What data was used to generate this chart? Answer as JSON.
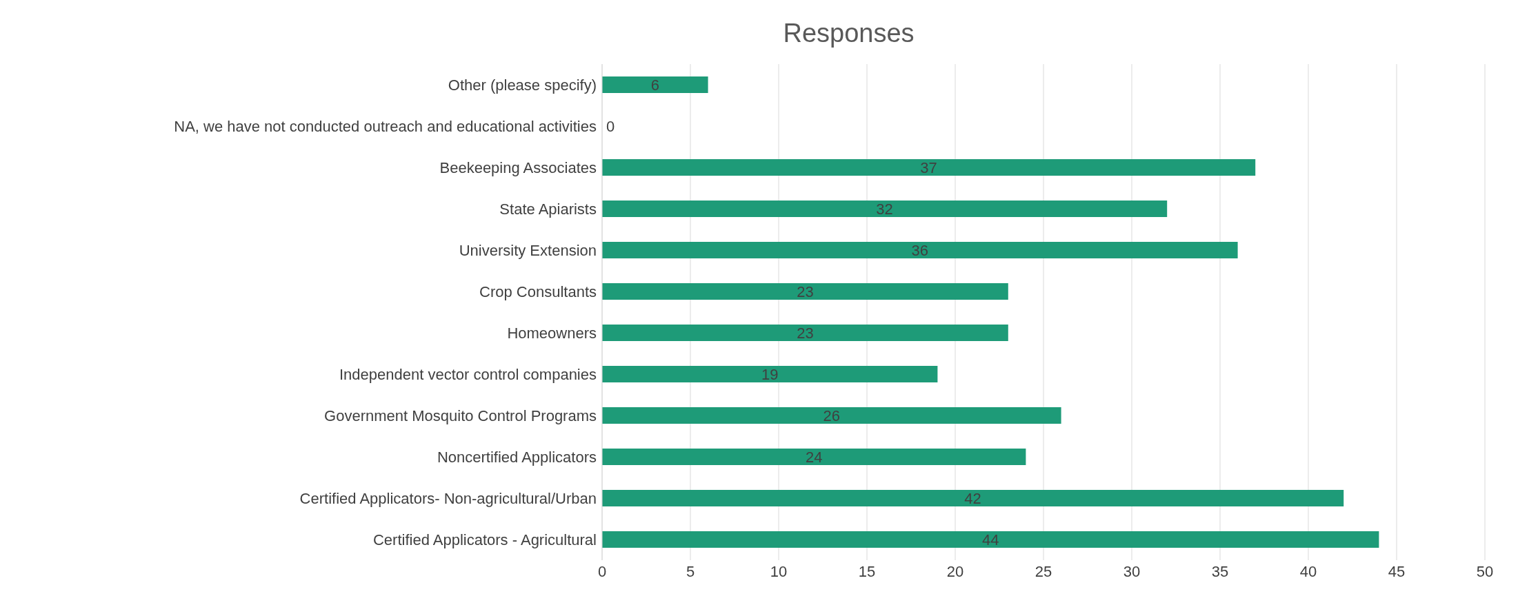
{
  "chart_data": {
    "type": "bar",
    "orientation": "horizontal",
    "title": "Responses",
    "categories": [
      "Other (please specify)",
      "NA, we have not conducted outreach and educational activities",
      "Beekeeping Associates",
      "State Apiarists",
      "University Extension",
      "Crop Consultants",
      "Homeowners",
      "Independent vector control companies",
      "Government Mosquito Control Programs",
      "Noncertified Applicators",
      "Certified Applicators- Non-agricultural/Urban",
      "Certified Applicators - Agricultural"
    ],
    "values": [
      6,
      0,
      37,
      32,
      36,
      23,
      23,
      19,
      26,
      24,
      42,
      44
    ],
    "color": "#1e9b78",
    "xlim": [
      0,
      50
    ],
    "xticks": [
      0,
      5,
      10,
      15,
      20,
      25,
      30,
      35,
      40,
      45,
      50
    ],
    "grid": "x",
    "data_labels": true
  }
}
